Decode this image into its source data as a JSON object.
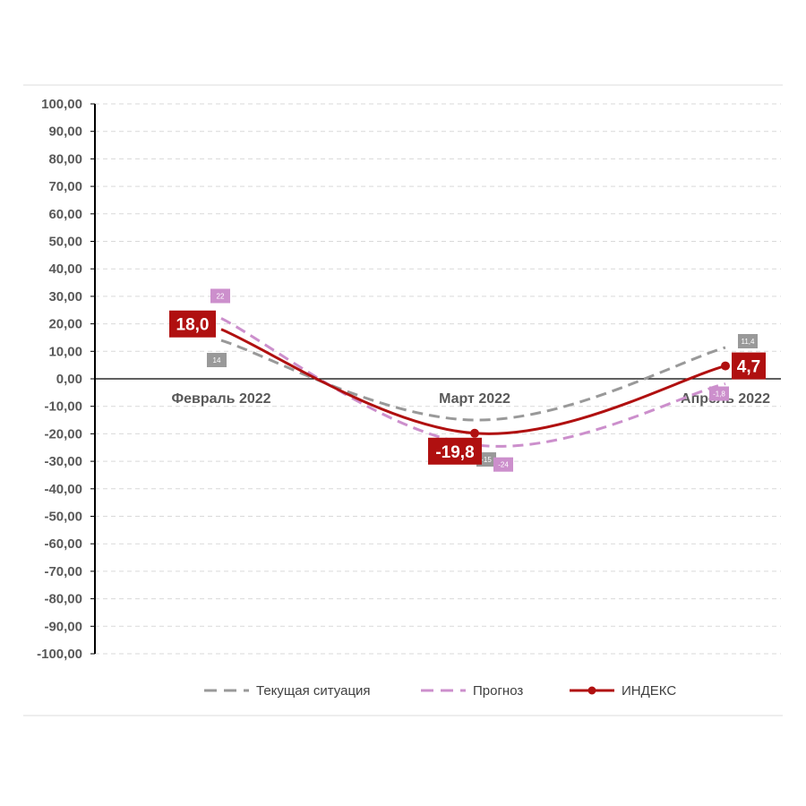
{
  "chart_data": {
    "type": "line",
    "categories": [
      "Февраль 2022",
      "Март 2022",
      "Апрель 2022"
    ],
    "ylim": [
      -100,
      100
    ],
    "ytick_step": 10,
    "ytick_labels": [
      "100,00",
      "90,00",
      "80,00",
      "70,00",
      "60,00",
      "50,00",
      "40,00",
      "30,00",
      "20,00",
      "10,00",
      "0,00",
      "-10,00",
      "-20,00",
      "-30,00",
      "-40,00",
      "-50,00",
      "-60,00",
      "-70,00",
      "-80,00",
      "-90,00",
      "-100,00"
    ],
    "grid": true,
    "legend_position": "bottom",
    "series": [
      {
        "name": "Текущая ситуация",
        "values": [
          14,
          -15,
          11.4
        ],
        "labels": [
          "14",
          "-15",
          "11,4"
        ],
        "color": "#999999",
        "style": "dashed"
      },
      {
        "name": "Прогноз",
        "values": [
          22,
          -24,
          -1.8
        ],
        "labels": [
          "22",
          "-24",
          "-1,8"
        ],
        "color": "#cc8fcc",
        "style": "dashed"
      },
      {
        "name": "ИНДЕКС",
        "values": [
          18.0,
          -19.8,
          4.7
        ],
        "labels": [
          "18,0",
          "-19,8",
          "4,7"
        ],
        "color": "#b01010",
        "style": "solid-markers"
      }
    ]
  }
}
